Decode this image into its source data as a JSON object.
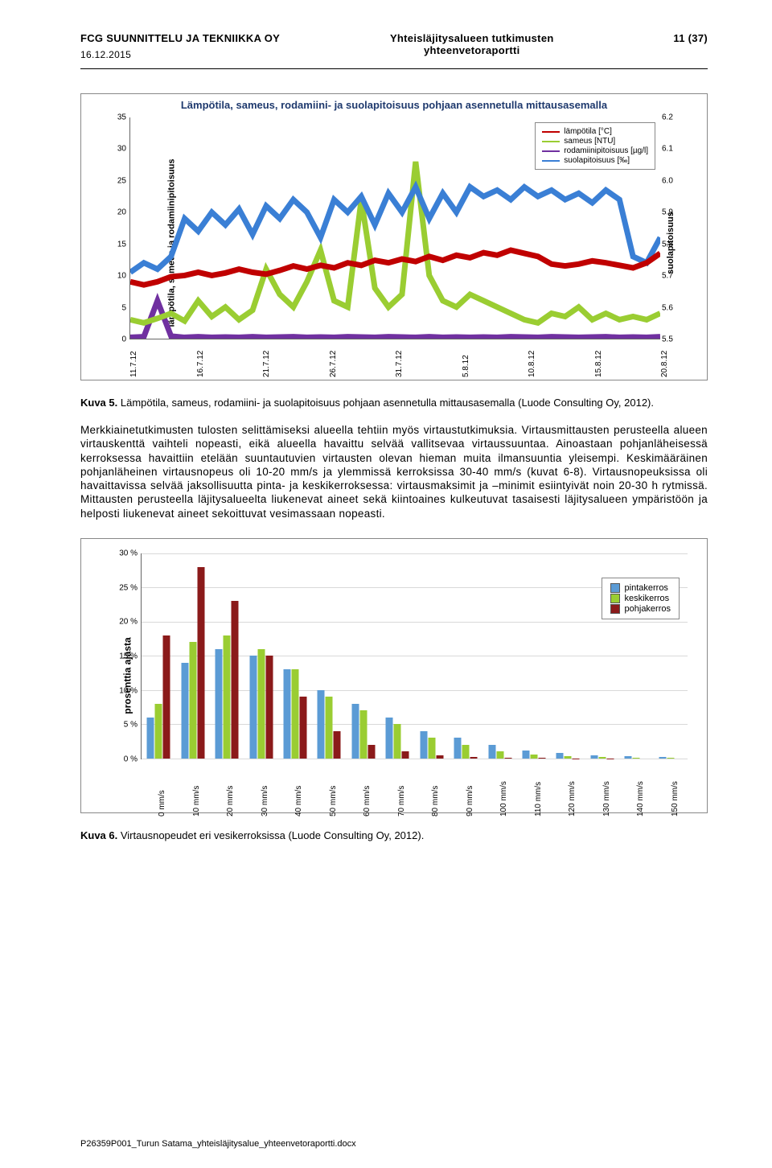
{
  "header": {
    "company": "FCG SUUNNITTELU JA TEKNIIKKA OY",
    "title_line1": "Yhteisläjitysalueen tutkimusten",
    "title_line2": "yhteenvetoraportti",
    "page_info": "11 (37)",
    "date": "16.12.2015"
  },
  "chart1": {
    "title": "Lämpötila, sameus, rodamiini- ja suolapitoisuus pohjaan asennetulla mittausasemalla",
    "ylabel_left": "lämpötila, sameus ja rodamiinipitoisuus",
    "ylabel_right": "suolapitoisuus",
    "left_ticks": [
      0,
      5,
      10,
      15,
      20,
      25,
      30,
      35
    ],
    "left_max": 35,
    "right_ticks": [
      5.5,
      5.6,
      5.7,
      5.8,
      5.9,
      6.0,
      6.1,
      6.2
    ],
    "right_min": 5.5,
    "right_max": 6.2,
    "x_labels": [
      "11.7.12",
      "16.7.12",
      "21.7.12",
      "26.7.12",
      "31.7.12",
      "5.8.12",
      "10.8.12",
      "15.8.12",
      "20.8.12"
    ],
    "legend": [
      {
        "label": "lämpötila [°C]",
        "color": "#c00000"
      },
      {
        "label": "sameus [NTU]",
        "color": "#9acd32"
      },
      {
        "label": "rodamiinipitoisuus [µg/l]",
        "color": "#7030a0"
      },
      {
        "label": "suolapitoisuus [‰]",
        "color": "#3a7fd5"
      }
    ],
    "series": {
      "lampotila": {
        "color": "#c00000",
        "values": [
          9,
          8.5,
          9,
          9.8,
          10,
          10.5,
          10,
          10.4,
          11,
          10.5,
          10.2,
          10.8,
          11.5,
          11,
          11.6,
          11.2,
          12,
          11.6,
          12.4,
          12,
          12.6,
          12.2,
          13,
          12.4,
          13.2,
          12.8,
          13.6,
          13.2,
          14,
          13.5,
          13,
          11.8,
          11.5,
          11.8,
          12.3,
          12,
          11.6,
          11.2,
          12,
          13.5
        ]
      },
      "sameus": {
        "color": "#9acd32",
        "values": [
          3,
          2.5,
          3.2,
          4,
          2.8,
          6,
          3.5,
          5,
          3,
          4.5,
          11,
          7,
          5,
          9,
          14,
          6,
          5,
          22,
          8,
          5,
          7,
          28,
          10,
          6,
          5,
          7,
          6,
          5,
          4,
          3,
          2.5,
          4,
          3.5,
          5,
          3,
          4,
          3,
          3.5,
          3,
          4
        ]
      },
      "rodamiini": {
        "color": "#7030a0",
        "values": [
          0.2,
          0.3,
          6,
          0.4,
          0.2,
          0.3,
          0.2,
          0.25,
          0.2,
          0.3,
          0.2,
          0.25,
          0.3,
          0.2,
          0.25,
          0.2,
          0.3,
          0.25,
          0.2,
          0.3,
          0.25,
          0.2,
          0.3,
          0.2,
          0.25,
          0.2,
          0.25,
          0.2,
          0.3,
          0.25,
          0.2,
          0.3,
          0.25,
          0.2,
          0.25,
          0.3,
          0.2,
          0.25,
          0.2,
          0.3
        ]
      },
      "suola": {
        "color": "#3a7fd5",
        "values": [
          5.71,
          5.74,
          5.72,
          5.76,
          5.88,
          5.84,
          5.9,
          5.86,
          5.91,
          5.83,
          5.92,
          5.88,
          5.94,
          5.9,
          5.82,
          5.94,
          5.9,
          5.95,
          5.86,
          5.96,
          5.9,
          5.98,
          5.88,
          5.96,
          5.9,
          5.98,
          5.95,
          5.97,
          5.94,
          5.98,
          5.95,
          5.97,
          5.94,
          5.96,
          5.93,
          5.97,
          5.94,
          5.76,
          5.74,
          5.82
        ]
      }
    }
  },
  "caption1": {
    "label": "Kuva 5.",
    "text": " Lämpötila, sameus, rodamiini- ja suolapitoisuus pohjaan asennetulla mittausasemalla (Luode Consulting Oy, 2012)."
  },
  "body": "Merkkiainetutkimusten tulosten selittämiseksi alueella tehtiin myös virtaustutkimuksia. Virtausmittausten perusteella alueen virtauskenttä vaihteli nopeasti, eikä alueella havaittu selvää vallitsevaa virtaussuuntaa. Ainoastaan pohjanläheisessä kerroksessa havaittiin etelään suuntautuvien virtausten olevan hieman muita ilmansuuntia yleisempi. Keskimääräinen pohjanläheinen virtausnopeus oli 10-20 mm/s ja ylemmissä kerroksissa 30-40 mm/s (kuvat 6-8). Virtausnopeuksissa oli havaittavissa selvää jaksollisuutta pinta- ja keskikerroksessa: virtausmaksimit ja –minimit esiintyivät noin 20-30 h rytmissä. Mittausten perusteella läjitysalueelta liukenevat aineet sekä kiintoaines kulkeutuvat tasaisesti läjitysalueen ympäristöön ja helposti liukenevat aineet sekoittuvat vesimassaan nopeasti.",
  "chart2": {
    "ylabel": "prosenttia ajasta",
    "y_ticks": [
      0,
      5,
      10,
      15,
      20,
      25,
      30
    ],
    "y_max": 30,
    "x_labels": [
      "0 mm/s",
      "10 mm/s",
      "20 mm/s",
      "30 mm/s",
      "40 mm/s",
      "50 mm/s",
      "60 mm/s",
      "70 mm/s",
      "80 mm/s",
      "90 mm/s",
      "100 mm/s",
      "110 mm/s",
      "120 mm/s",
      "130 mm/s",
      "140 mm/s",
      "150 mm/s"
    ],
    "legend": [
      {
        "label": "pintakerros",
        "color": "#5b9bd5"
      },
      {
        "label": "keskikerros",
        "color": "#9acd32"
      },
      {
        "label": "pohjakerros",
        "color": "#8b1a1a"
      }
    ],
    "series": {
      "pinta": [
        6,
        14,
        16,
        15,
        13,
        10,
        8,
        6,
        4,
        3,
        2,
        1.2,
        0.8,
        0.5,
        0.3,
        0.2
      ],
      "keski": [
        8,
        17,
        18,
        16,
        13,
        9,
        7,
        5,
        3,
        2,
        1,
        0.6,
        0.3,
        0.2,
        0.1,
        0.05
      ],
      "pohja": [
        18,
        28,
        23,
        15,
        9,
        4,
        2,
        1,
        0.4,
        0.2,
        0.1,
        0.05,
        0.02,
        0.01,
        0.005,
        0.003
      ]
    },
    "colors": {
      "pinta": "#5b9bd5",
      "keski": "#9acd32",
      "pohja": "#8b1a1a"
    }
  },
  "caption2": {
    "label": "Kuva 6.",
    "text": " Virtausnopeudet eri vesikerroksissa (Luode Consulting Oy, 2012)."
  },
  "footer": "P26359P001_Turun Satama_yhteisläjitysalue_yhteenvetoraportti.docx"
}
